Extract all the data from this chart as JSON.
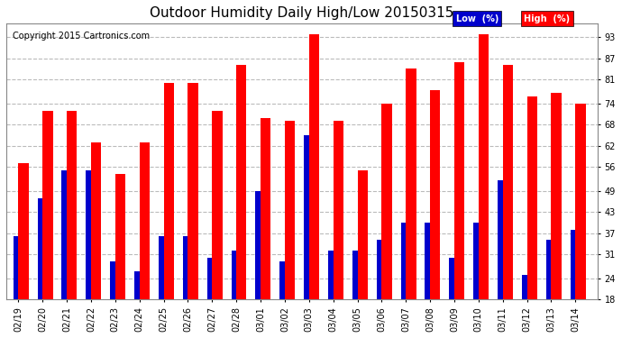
{
  "title": "Outdoor Humidity Daily High/Low 20150315",
  "copyright": "Copyright 2015 Cartronics.com",
  "dates": [
    "02/19",
    "02/20",
    "02/21",
    "02/22",
    "02/23",
    "02/24",
    "02/25",
    "02/26",
    "02/27",
    "02/28",
    "03/01",
    "03/02",
    "03/03",
    "03/04",
    "03/05",
    "03/06",
    "03/07",
    "03/08",
    "03/09",
    "03/10",
    "03/11",
    "03/12",
    "03/13",
    "03/14"
  ],
  "high": [
    57,
    72,
    72,
    63,
    54,
    63,
    80,
    80,
    72,
    85,
    70,
    69,
    94,
    69,
    55,
    74,
    84,
    78,
    86,
    94,
    85,
    76,
    77,
    74
  ],
  "low": [
    36,
    47,
    55,
    55,
    29,
    26,
    36,
    36,
    30,
    32,
    49,
    29,
    65,
    32,
    32,
    35,
    40,
    40,
    30,
    40,
    52,
    25,
    35,
    38
  ],
  "high_color": "#ff0000",
  "low_color": "#0000cc",
  "bg_color": "#ffffff",
  "grid_color": "#bbbbbb",
  "ylim": [
    18,
    97
  ],
  "yticks": [
    18,
    24,
    31,
    37,
    43,
    49,
    56,
    62,
    68,
    74,
    81,
    87,
    93
  ],
  "bar_width": 0.42,
  "figsize": [
    6.9,
    3.75
  ],
  "dpi": 100,
  "title_fontsize": 11,
  "tick_fontsize": 7,
  "copyright_fontsize": 7
}
